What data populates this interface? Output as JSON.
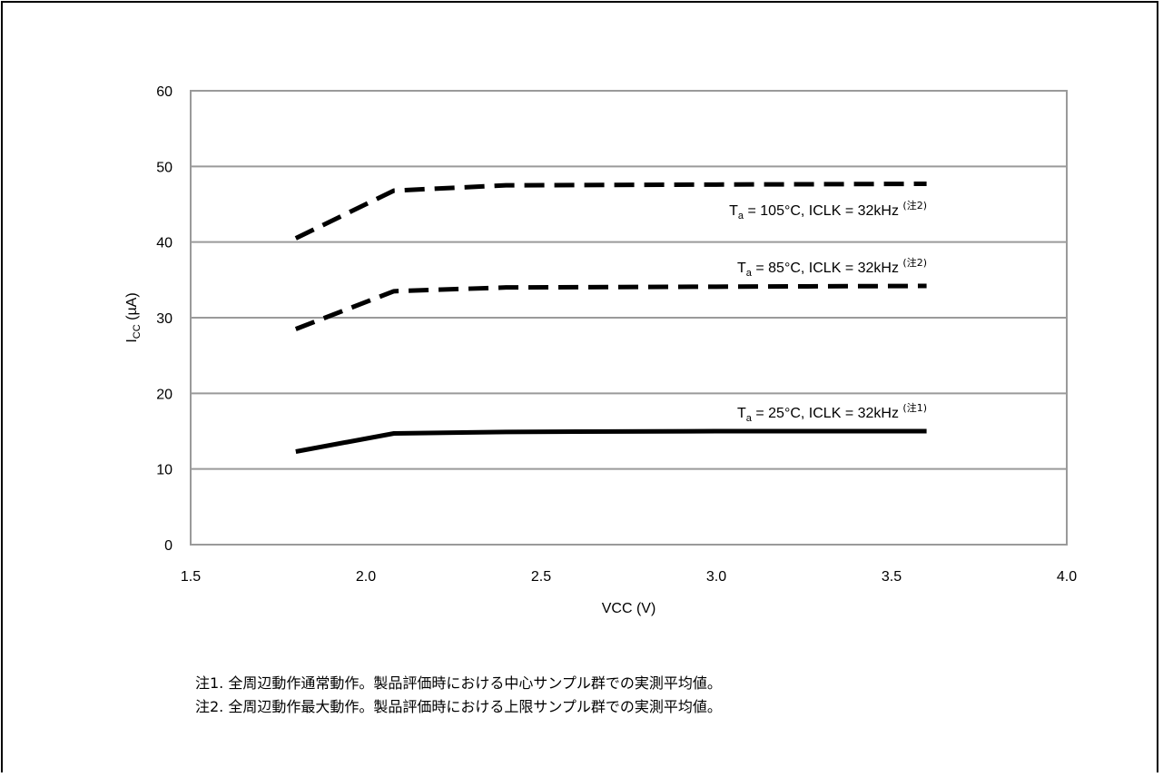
{
  "chart_data": {
    "type": "line",
    "xlabel": "VCC (V)",
    "ylabel": {
      "main": "I",
      "sub": "CC",
      "rest": " (µA)"
    },
    "xlim": [
      1.5,
      4.0
    ],
    "ylim": [
      0,
      60
    ],
    "xticks": [
      "1.5",
      "2.0",
      "2.5",
      "3.0",
      "3.5",
      "4.0"
    ],
    "yticks": [
      "0",
      "10",
      "20",
      "30",
      "40",
      "50",
      "60"
    ],
    "grid": "horizontal",
    "series": [
      {
        "style": "dashed",
        "color": "#000000",
        "label": {
          "t": "T",
          "sub": "a",
          "text": " = 105°C, ICLK = 32kHz ",
          "note": "(注2)"
        },
        "x": [
          1.8,
          2.08,
          2.4,
          3.0,
          3.6
        ],
        "y": [
          40.5,
          46.8,
          47.5,
          47.6,
          47.7
        ]
      },
      {
        "style": "dashed",
        "color": "#000000",
        "label": {
          "t": "T",
          "sub": "a",
          "text": " = 85°C, ICLK = 32kHz ",
          "note": "(注2)"
        },
        "x": [
          1.8,
          2.08,
          2.4,
          3.0,
          3.6
        ],
        "y": [
          28.5,
          33.5,
          34.0,
          34.1,
          34.2
        ]
      },
      {
        "style": "solid",
        "color": "#000000",
        "label": {
          "t": "T",
          "sub": "a",
          "text": " = 25°C, ICLK = 32kHz ",
          "note": "(注1)"
        },
        "x": [
          1.8,
          2.08,
          2.4,
          3.0,
          3.6
        ],
        "y": [
          12.3,
          14.7,
          14.9,
          15.0,
          15.0
        ]
      }
    ]
  },
  "notes": [
    "注1.  全周辺動作通常動作。製品評価時における中心サンプル群での実測平均値。",
    "注2.  全周辺動作最大動作。製品評価時における上限サンプル群での実測平均値。"
  ]
}
